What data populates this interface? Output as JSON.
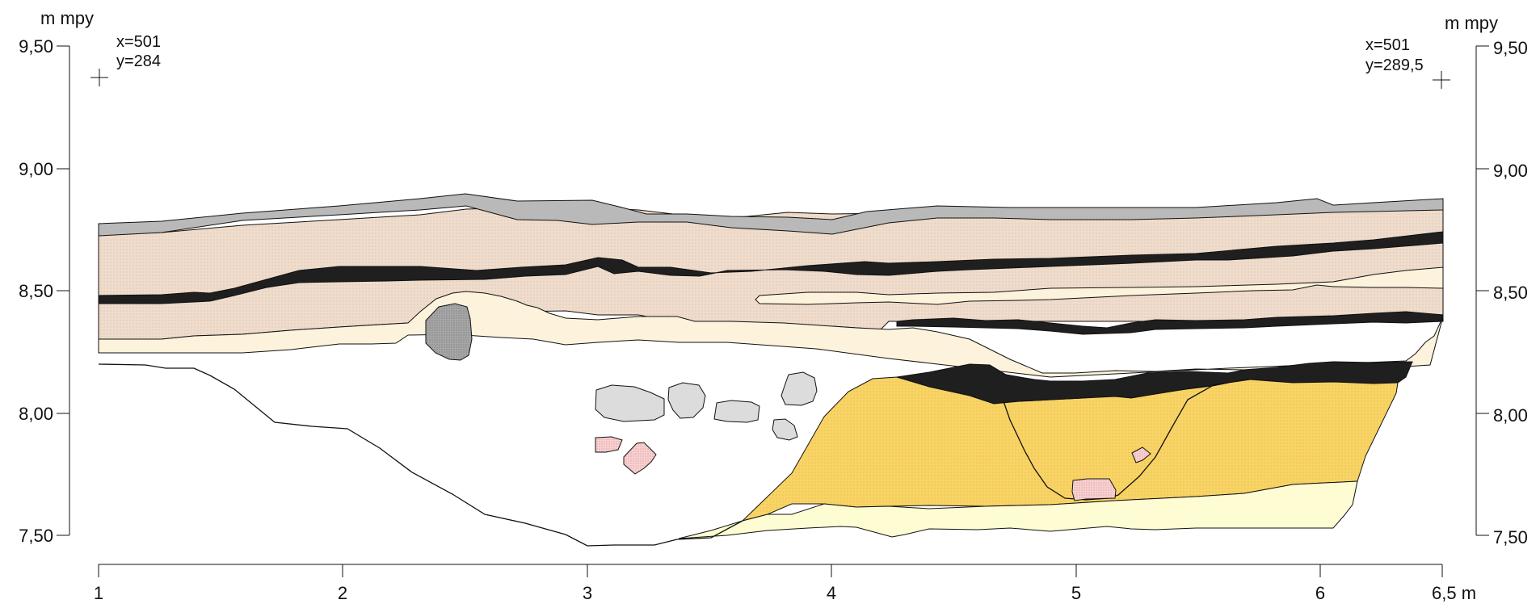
{
  "left_axis": {
    "unit": "m mpy",
    "ticks": [
      "9,50",
      "9,00",
      "8,50",
      "8,00",
      "7,50"
    ],
    "values": [
      9.5,
      9.0,
      8.5,
      8.0,
      7.5
    ]
  },
  "right_axis": {
    "unit": "m mpy",
    "ticks": [
      "9,50",
      "9,00",
      "8,50",
      "8,00",
      "7,50"
    ],
    "values": [
      9.5,
      9.0,
      8.5,
      8.0,
      7.5
    ]
  },
  "bottom_axis": {
    "ticks": [
      "1",
      "2",
      "3",
      "4",
      "5",
      "6",
      "6,5 m"
    ],
    "values": [
      1,
      2,
      3,
      4,
      5,
      6,
      6.5
    ]
  },
  "left_point": {
    "x_label": "x=501",
    "y_label": "y=284"
  },
  "right_point": {
    "x_label": "x=501",
    "y_label": "y=289,5"
  },
  "colors": {
    "topsoil": "#b9b9b9",
    "sand_brown": "#efdccc",
    "charcoal": "#1f1f1f",
    "light_sand": "#fdf3dc",
    "yellow_fill": "#f8d466",
    "pale_yellow": "#fefcd2",
    "stone": "#dcdcdc",
    "stone_dark": "#9d9d9d",
    "brick": "#f6c7c8"
  },
  "icons": [
    "crosshair-icon",
    "crosshair-icon"
  ]
}
